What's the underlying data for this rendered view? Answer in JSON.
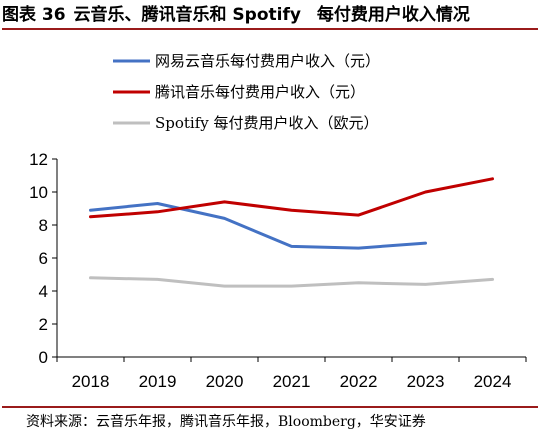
{
  "title": {
    "prefix": "图表 36",
    "main": "云音乐、腾讯音乐和 Spotify",
    "tail": "每付费用户收入情况"
  },
  "source": "资料来源：云音乐年报，腾讯音乐年报，Bloomberg，华安证券",
  "chart_data": {
    "type": "line",
    "categories": [
      "2018",
      "2019",
      "2020",
      "2021",
      "2022",
      "2023",
      "2024"
    ],
    "ylim": [
      0,
      12
    ],
    "yticks": [
      0,
      2,
      4,
      6,
      8,
      10,
      12
    ],
    "grid": false,
    "legend_position": "top",
    "series": [
      {
        "name": "网易云音乐每付费用户收入（元）",
        "color": "#4472c4",
        "values": [
          8.9,
          9.3,
          8.4,
          6.7,
          6.6,
          6.9,
          null
        ]
      },
      {
        "name": "腾讯音乐每付费用户收入（元）",
        "color": "#c00000",
        "values": [
          8.5,
          8.8,
          9.4,
          8.9,
          8.6,
          10.0,
          10.8
        ]
      },
      {
        "name": "Spotify 每付费用户收入（欧元）",
        "color": "#bfbfbf",
        "values": [
          4.8,
          4.7,
          4.3,
          4.3,
          4.5,
          4.4,
          4.7
        ]
      }
    ]
  }
}
